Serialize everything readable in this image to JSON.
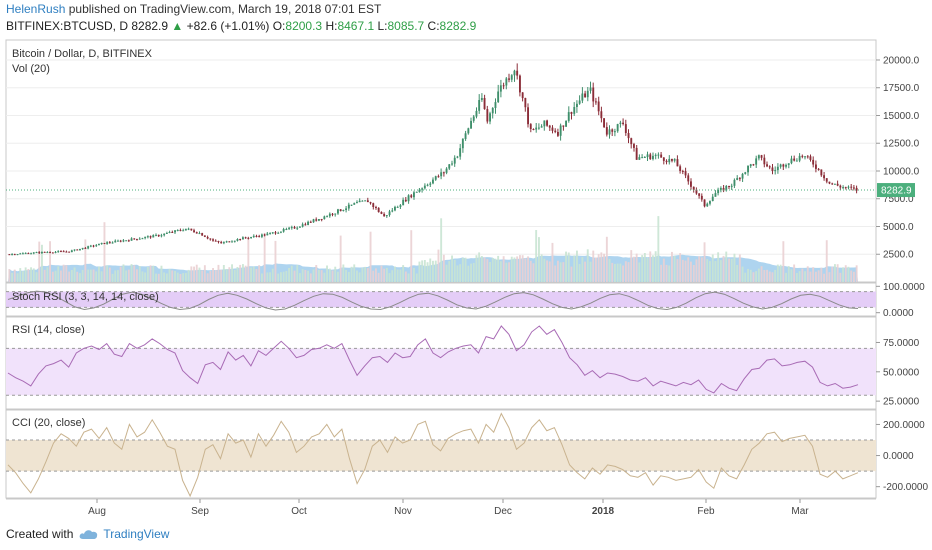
{
  "header": {
    "author": "HelenRush",
    "published_text": "published on TradingView.com, March 19, 2018 07:01 EST",
    "symbol": "BITFINEX:BTCUSD, D",
    "last": "8282.9",
    "change_arrow": "▲",
    "change": "+82.6 (+1.01%)",
    "o_label": "O:",
    "o_val": "8200.3",
    "h_label": "H:",
    "h_val": "8467.1",
    "l_label": "L:",
    "l_val": "8085.7",
    "c_label": "C:",
    "c_val": "8282.9"
  },
  "footer": {
    "created_with": "Created with",
    "brand": "TradingView"
  },
  "chart_data": [
    {
      "type": "candlestick",
      "title": "Bitcoin / Dollar, D, BITFINEX",
      "volume_label": "Vol (20)",
      "last_price_label": "8282.9",
      "y_ticks": [
        "20000.0",
        "17500.0",
        "15000.0",
        "12500.0",
        "10000.0",
        "7500.0",
        "5000.0",
        "2500.0"
      ],
      "ylim": [
        0,
        21800
      ],
      "x_ticks": [
        "Aug",
        "Sep",
        "Oct",
        "Nov",
        "Dec",
        "2018",
        "Feb",
        "Mar"
      ],
      "colors": {
        "up": "#3f8f6b",
        "down": "#8b2d38",
        "volume_ma": "#93c5ea",
        "last_line": "#4caf7d"
      },
      "close_anchors": [
        [
          0,
          2500
        ],
        [
          14,
          2700
        ],
        [
          22,
          2750
        ],
        [
          35,
          3500
        ],
        [
          55,
          4200
        ],
        [
          65,
          4800
        ],
        [
          70,
          4400
        ],
        [
          75,
          3700
        ],
        [
          78,
          3500
        ],
        [
          85,
          3900
        ],
        [
          95,
          4300
        ],
        [
          105,
          4900
        ],
        [
          115,
          5800
        ],
        [
          120,
          6300
        ],
        [
          128,
          7100
        ],
        [
          132,
          7300
        ],
        [
          138,
          5900
        ],
        [
          143,
          6900
        ],
        [
          150,
          8200
        ],
        [
          160,
          9900
        ],
        [
          165,
          11500
        ],
        [
          170,
          14500
        ],
        [
          174,
          16500
        ],
        [
          176,
          14500
        ],
        [
          180,
          17200
        ],
        [
          186,
          19300
        ],
        [
          188,
          17500
        ],
        [
          192,
          13500
        ],
        [
          197,
          14200
        ],
        [
          202,
          13500
        ],
        [
          207,
          15500
        ],
        [
          212,
          16900
        ],
        [
          214,
          17200
        ],
        [
          220,
          13500
        ],
        [
          226,
          14300
        ],
        [
          231,
          11200
        ],
        [
          238,
          11400
        ],
        [
          245,
          10800
        ],
        [
          252,
          8400
        ],
        [
          256,
          6900
        ],
        [
          260,
          8000
        ],
        [
          266,
          8800
        ],
        [
          272,
          10300
        ],
        [
          276,
          11200
        ],
        [
          281,
          10000
        ],
        [
          286,
          10800
        ],
        [
          292,
          11400
        ],
        [
          296,
          10700
        ],
        [
          302,
          8900
        ],
        [
          306,
          8600
        ],
        [
          312,
          8300
        ]
      ]
    },
    {
      "type": "line",
      "title": "Stoch RSI (3, 3, 14, 14, close)",
      "y_ticks": [
        "100.0000",
        "0.0000"
      ],
      "band": [
        20,
        80
      ],
      "values": [
        50,
        62,
        75,
        82,
        78,
        62,
        42,
        22,
        12,
        18,
        32,
        52,
        70,
        78,
        70,
        54,
        36,
        20,
        12,
        16,
        30,
        50,
        66,
        74,
        66,
        52,
        34,
        18,
        10,
        14,
        28,
        46,
        62,
        72,
        70,
        58,
        40,
        24,
        14,
        12,
        22,
        38,
        56,
        70,
        74,
        64,
        48,
        30,
        18,
        14,
        24,
        40,
        58,
        72,
        76,
        68,
        52,
        34,
        20,
        14,
        22,
        36,
        54,
        68,
        72,
        62,
        46,
        28,
        16,
        12,
        20,
        36,
        56,
        72,
        78,
        70,
        54,
        36,
        22,
        14,
        20,
        34,
        52,
        66,
        70,
        62,
        46,
        30,
        18,
        16
      ]
    },
    {
      "type": "line",
      "title": "RSI (14, close)",
      "y_ticks": [
        "75.0000",
        "50.0000",
        "25.0000"
      ],
      "band": [
        30,
        70
      ],
      "values": [
        49,
        45,
        42,
        38,
        48,
        55,
        57,
        60,
        54,
        66,
        70,
        72,
        69,
        74,
        65,
        63,
        74,
        70,
        73,
        78,
        74,
        69,
        66,
        51,
        45,
        40,
        56,
        58,
        52,
        67,
        60,
        64,
        55,
        68,
        64,
        70,
        76,
        70,
        62,
        64,
        69,
        70,
        73,
        70,
        74,
        60,
        47,
        55,
        62,
        63,
        58,
        66,
        62,
        63,
        73,
        78,
        66,
        62,
        67,
        70,
        72,
        73,
        66,
        80,
        78,
        89,
        82,
        68,
        73,
        84,
        89,
        82,
        86,
        75,
        62,
        56,
        47,
        51,
        45,
        49,
        48,
        46,
        43,
        42,
        45,
        38,
        42,
        40,
        38,
        41,
        39,
        43,
        35,
        32,
        40,
        36,
        34,
        44,
        52,
        53,
        60,
        61,
        55,
        56,
        58,
        59,
        54,
        41,
        38,
        40,
        36,
        37,
        39
      ]
    },
    {
      "type": "line",
      "title": "CCI (20, close)",
      "y_ticks": [
        "200.0000",
        "0.0000",
        "-200.0000"
      ],
      "band": [
        -100,
        100
      ],
      "values": [
        -60,
        -110,
        -180,
        -240,
        -150,
        -40,
        80,
        140,
        110,
        60,
        150,
        170,
        110,
        180,
        80,
        40,
        200,
        120,
        150,
        230,
        150,
        60,
        40,
        -160,
        -260,
        -140,
        40,
        70,
        -20,
        140,
        80,
        100,
        -10,
        140,
        60,
        130,
        220,
        150,
        20,
        60,
        120,
        140,
        200,
        120,
        170,
        -20,
        -180,
        -90,
        60,
        100,
        20,
        120,
        80,
        100,
        200,
        220,
        70,
        30,
        110,
        140,
        160,
        170,
        80,
        200,
        150,
        270,
        180,
        40,
        80,
        180,
        230,
        160,
        180,
        70,
        -60,
        -110,
        -150,
        -80,
        -120,
        -60,
        -70,
        -90,
        -130,
        -140,
        -110,
        -190,
        -130,
        -140,
        -160,
        -150,
        -140,
        -90,
        -170,
        -210,
        -80,
        -130,
        -150,
        -60,
        40,
        80,
        140,
        150,
        90,
        110,
        120,
        130,
        60,
        -120,
        -140,
        -100,
        -150,
        -130,
        -110
      ]
    }
  ]
}
